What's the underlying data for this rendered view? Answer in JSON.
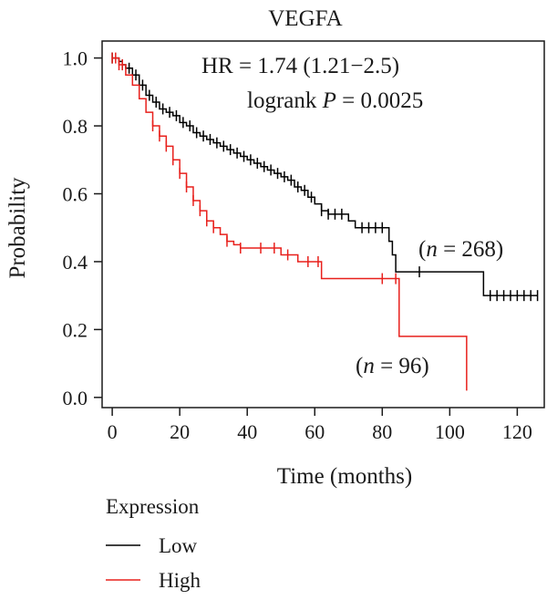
{
  "chart_data": {
    "type": "line",
    "title": "VEGFA",
    "xlabel": "Time (months)",
    "ylabel": "Probability",
    "xlim": [
      -3,
      128
    ],
    "ylim": [
      -0.03,
      1.05
    ],
    "xticks": [
      0,
      20,
      40,
      60,
      80,
      100,
      120
    ],
    "yticks": [
      0.0,
      0.2,
      0.4,
      0.6,
      0.8,
      1.0
    ],
    "xtick_labels": [
      "0",
      "20",
      "40",
      "60",
      "80",
      "100",
      "120"
    ],
    "ytick_labels": [
      "0.0",
      "0.2",
      "0.4",
      "0.6",
      "0.8",
      "1.0"
    ],
    "grid": false,
    "annotations": {
      "hr": "HR = 1.74 (1.21−2.5)",
      "logrank_prefix": "logrank ",
      "logrank_p": "P",
      "logrank_suffix": " = 0.0025",
      "n_low_open": "(",
      "n_low_italic": "n",
      "n_low_rest": " = 268)",
      "n_high_open": "(",
      "n_high_italic": "n",
      "n_high_rest": " = 96)"
    },
    "legend": {
      "title": "Expression",
      "placement": "bottom-left"
    },
    "series": [
      {
        "name": "Low",
        "color": "#000000",
        "x": [
          0,
          2,
          3,
          4,
          6,
          8,
          10,
          12,
          14,
          16,
          18,
          20,
          22,
          24,
          26,
          28,
          30,
          32,
          34,
          36,
          38,
          40,
          42,
          44,
          46,
          48,
          50,
          52,
          54,
          56,
          58,
          60,
          62,
          64,
          66,
          68,
          70,
          72,
          74,
          76,
          78,
          80,
          82,
          83,
          84,
          86,
          88,
          90,
          92,
          100,
          108,
          110,
          112,
          126
        ],
        "y": [
          1.0,
          0.99,
          0.98,
          0.97,
          0.95,
          0.92,
          0.89,
          0.87,
          0.85,
          0.84,
          0.83,
          0.81,
          0.8,
          0.78,
          0.77,
          0.76,
          0.75,
          0.74,
          0.73,
          0.72,
          0.71,
          0.7,
          0.69,
          0.68,
          0.67,
          0.66,
          0.65,
          0.64,
          0.62,
          0.61,
          0.59,
          0.57,
          0.55,
          0.54,
          0.54,
          0.54,
          0.52,
          0.5,
          0.5,
          0.5,
          0.5,
          0.5,
          0.46,
          0.42,
          0.37,
          0.37,
          0.37,
          0.37,
          0.37,
          0.37,
          0.37,
          0.3,
          0.3,
          0.3
        ],
        "censor_x": [
          0,
          3,
          5,
          7,
          9,
          11,
          13,
          15,
          17,
          19,
          21,
          23,
          25,
          27,
          29,
          31,
          33,
          35,
          37,
          39,
          41,
          43,
          45,
          47,
          49,
          51,
          53,
          55,
          57,
          59,
          62,
          64,
          66,
          68,
          74,
          76,
          78,
          80,
          91,
          112,
          114,
          116,
          118,
          120,
          122,
          124,
          126
        ]
      },
      {
        "name": "High",
        "color": "#e8201c",
        "x": [
          0,
          2,
          4,
          6,
          8,
          10,
          12,
          14,
          16,
          18,
          20,
          22,
          24,
          26,
          28,
          30,
          32,
          34,
          36,
          38,
          40,
          45,
          50,
          55,
          60,
          62,
          70,
          80,
          84,
          85,
          90,
          100,
          105,
          105
        ],
        "y": [
          1.0,
          0.98,
          0.95,
          0.92,
          0.88,
          0.84,
          0.8,
          0.77,
          0.74,
          0.7,
          0.66,
          0.62,
          0.58,
          0.55,
          0.52,
          0.5,
          0.48,
          0.46,
          0.45,
          0.44,
          0.44,
          0.44,
          0.42,
          0.4,
          0.4,
          0.35,
          0.35,
          0.35,
          0.35,
          0.18,
          0.18,
          0.18,
          0.18,
          0.02
        ],
        "censor_x": [
          0,
          1,
          2,
          3,
          12,
          14,
          16,
          18,
          20,
          22,
          24,
          26,
          28,
          30,
          34,
          38,
          44,
          48,
          52,
          58,
          61,
          80,
          84
        ]
      }
    ]
  }
}
